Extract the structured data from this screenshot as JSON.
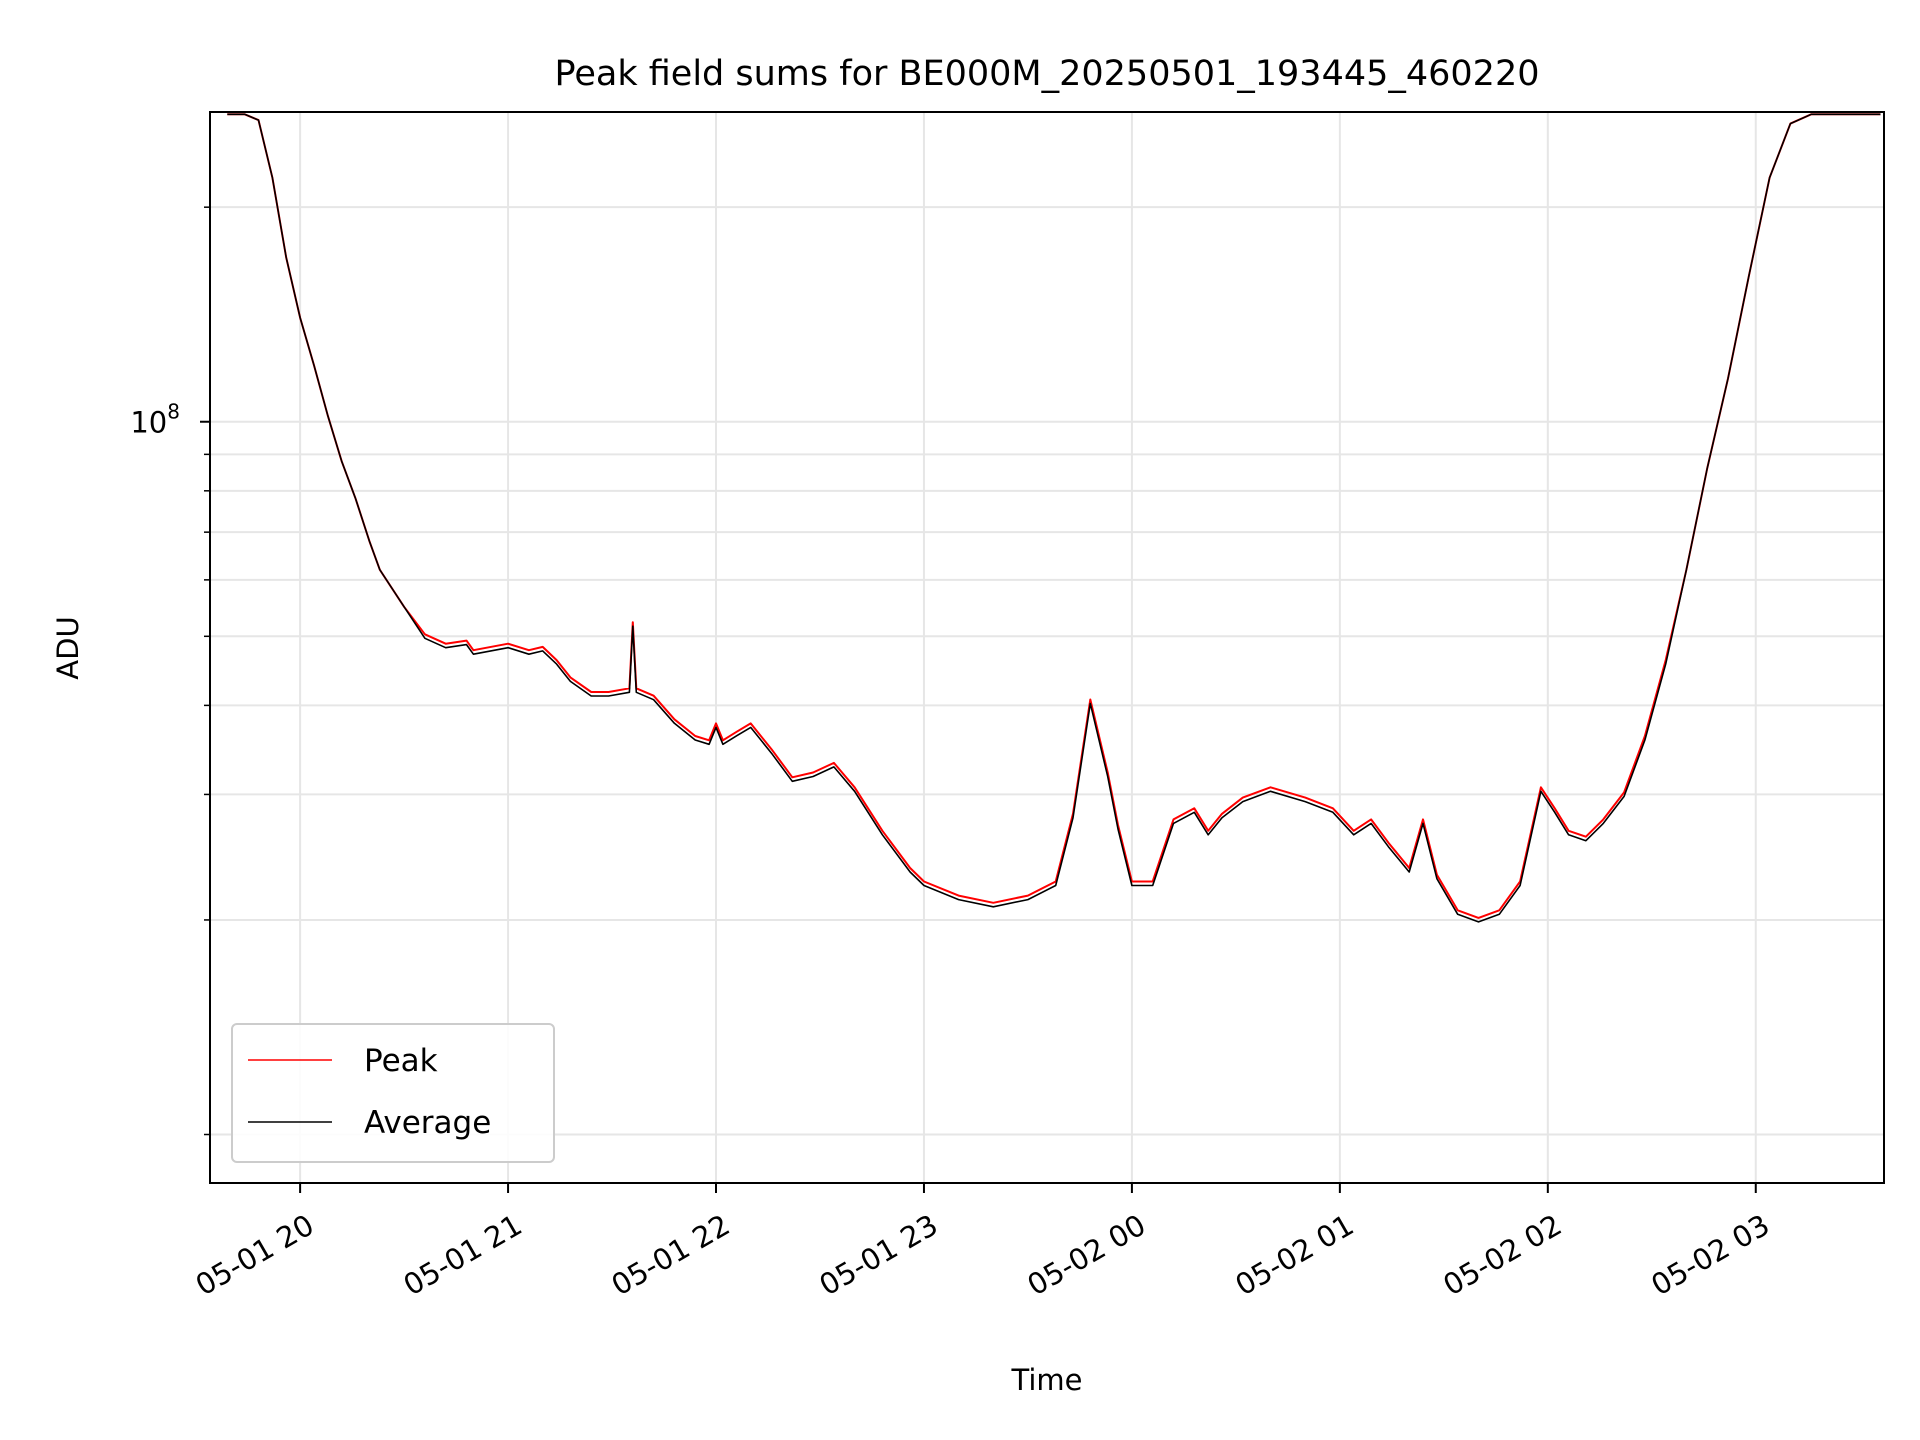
{
  "chart_data": {
    "type": "line",
    "title": "Peak field sums for BE000M_20250501_193445_460220",
    "xlabel": "Time",
    "ylabel": "ADU",
    "y_scale": "log",
    "ylim": [
      8550000.0,
      272000000.0
    ],
    "xlim": [
      "2025-05-01 19:34",
      "2025-05-02 03:37"
    ],
    "x_ticks": [
      "05-01 20",
      "05-01 21",
      "05-01 22",
      "05-01 23",
      "05-02 00",
      "05-02 01",
      "05-02 02",
      "05-02 03"
    ],
    "x_tick_values": [
      "2025-05-01 20:00",
      "2025-05-01 21:00",
      "2025-05-01 22:00",
      "2025-05-01 23:00",
      "2025-05-02 00:00",
      "2025-05-02 01:00",
      "2025-05-02 02:00",
      "2025-05-02 03:00"
    ],
    "y_ticks_major": [
      {
        "value": 100000000.0,
        "base": "10",
        "exp": "8"
      }
    ],
    "y_ticks_minor": [
      10000000.0,
      20000000.0,
      30000000.0,
      40000000.0,
      50000000.0,
      60000000.0,
      70000000.0,
      80000000.0,
      90000000.0,
      200000000.0
    ],
    "grid": true,
    "legend_position": "lower-left",
    "series": [
      {
        "name": "Peak",
        "color": "#ff0000"
      },
      {
        "name": "Average",
        "color": "#000000"
      }
    ],
    "x": [
      "2025-05-01 19:39",
      "2025-05-01 19:44",
      "2025-05-01 19:48",
      "2025-05-01 19:52",
      "2025-05-01 19:56",
      "2025-05-01 20:00",
      "2025-05-01 20:04",
      "2025-05-01 20:08",
      "2025-05-01 20:12",
      "2025-05-01 20:16",
      "2025-05-01 20:20",
      "2025-05-01 20:23",
      "2025-05-01 20:30",
      "2025-05-01 20:36",
      "2025-05-01 20:42",
      "2025-05-01 20:48",
      "2025-05-01 20:50",
      "2025-05-01 21:00",
      "2025-05-01 21:06",
      "2025-05-01 21:10",
      "2025-05-01 21:14",
      "2025-05-01 21:18",
      "2025-05-01 21:24",
      "2025-05-01 21:29",
      "2025-05-01 21:35",
      "2025-05-01 21:36",
      "2025-05-01 21:37",
      "2025-05-01 21:42",
      "2025-05-01 21:48",
      "2025-05-01 21:54",
      "2025-05-01 21:58",
      "2025-05-01 22:00",
      "2025-05-01 22:02",
      "2025-05-01 22:06",
      "2025-05-01 22:10",
      "2025-05-01 22:16",
      "2025-05-01 22:22",
      "2025-05-01 22:28",
      "2025-05-01 22:34",
      "2025-05-01 22:40",
      "2025-05-01 22:48",
      "2025-05-01 22:56",
      "2025-05-01 23:00",
      "2025-05-01 23:10",
      "2025-05-01 23:20",
      "2025-05-01 23:30",
      "2025-05-01 23:38",
      "2025-05-01 23:43",
      "2025-05-01 23:48",
      "2025-05-01 23:53",
      "2025-05-01 23:56",
      "2025-05-02 00:00",
      "2025-05-02 00:06",
      "2025-05-02 00:12",
      "2025-05-02 00:18",
      "2025-05-02 00:22",
      "2025-05-02 00:26",
      "2025-05-02 00:32",
      "2025-05-02 00:40",
      "2025-05-02 00:50",
      "2025-05-02 00:58",
      "2025-05-02 01:04",
      "2025-05-02 01:09",
      "2025-05-02 01:14",
      "2025-05-02 01:20",
      "2025-05-02 01:24",
      "2025-05-02 01:28",
      "2025-05-02 01:34",
      "2025-05-02 01:40",
      "2025-05-02 01:46",
      "2025-05-02 01:52",
      "2025-05-02 01:58",
      "2025-05-02 02:02",
      "2025-05-02 02:06",
      "2025-05-02 02:11",
      "2025-05-02 02:16",
      "2025-05-02 02:22",
      "2025-05-02 02:28",
      "2025-05-02 02:34",
      "2025-05-02 02:40",
      "2025-05-02 02:46",
      "2025-05-02 02:52",
      "2025-05-02 02:58",
      "2025-05-02 03:04",
      "2025-05-02 03:10",
      "2025-05-02 03:16",
      "2025-05-02 03:22",
      "2025-05-02 03:28",
      "2025-05-02 03:36"
    ],
    "values": [
      270000000.0,
      270000000.0,
      265000000.0,
      220000000.0,
      170000000.0,
      140000000.0,
      120000000.0,
      102000000.0,
      88000000.0,
      78000000.0,
      68000000.0,
      62000000.0,
      55000000.0,
      50000000.0,
      48500000.0,
      49000000.0,
      47500000.0,
      48500000.0,
      47500000.0,
      48000000.0,
      46000000.0,
      43500000.0,
      41500000.0,
      41500000.0,
      42000000.0,
      52000000.0,
      42000000.0,
      41000000.0,
      38000000.0,
      36000000.0,
      35500000.0,
      37500000.0,
      35500000.0,
      36500000.0,
      37500000.0,
      34500000.0,
      31500000.0,
      32000000.0,
      33000000.0,
      30500000.0,
      26500000.0,
      23500000.0,
      22500000.0,
      21500000.0,
      21000000.0,
      21500000.0,
      22500000.0,
      28000000.0,
      40500000.0,
      32000000.0,
      27000000.0,
      22500000.0,
      22500000.0,
      27500000.0,
      28500000.0,
      26500000.0,
      28000000.0,
      29500000.0,
      30500000.0,
      29500000.0,
      28500000.0,
      26500000.0,
      27500000.0,
      25500000.0,
      23500000.0,
      27500000.0,
      23000000.0,
      20500000.0,
      20000000.0,
      20500000.0,
      22500000.0,
      30500000.0,
      28500000.0,
      26500000.0,
      26000000.0,
      27500000.0,
      30000000.0,
      36000000.0,
      46000000.0,
      62000000.0,
      86000000.0,
      115000000.0,
      160000000.0,
      220000000.0,
      262000000.0,
      270000000.0,
      270000000.0,
      270000000.0,
      270000000.0
    ]
  }
}
